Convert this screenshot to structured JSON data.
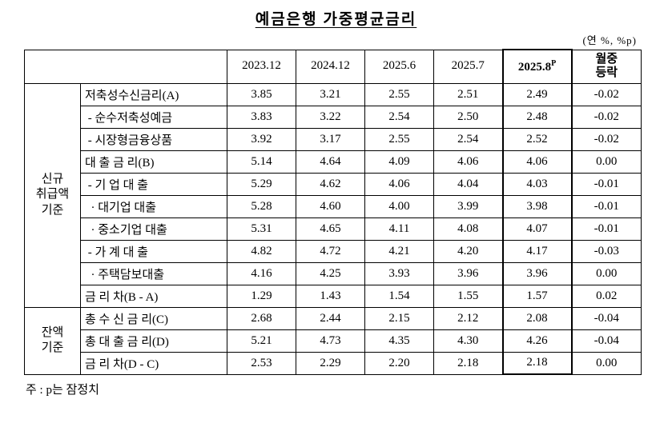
{
  "title": "예금은행 가중평균금리",
  "unit_note": "(연 %, %p)",
  "footnote": "주 : p는 잠정치",
  "table": {
    "highlight_col_index": 4,
    "col_headers": [
      {
        "label": "2023.12"
      },
      {
        "label": "2024.12"
      },
      {
        "label": "2025.6"
      },
      {
        "label": "2025.7"
      },
      {
        "label": "2025.8",
        "sup": "P",
        "bold": true
      },
      {
        "label": "월중\n등락",
        "bold": true
      }
    ],
    "groups": [
      {
        "label": "신규\n취급액\n기준",
        "rows": [
          {
            "label": "저축성수신금리(A)",
            "values": [
              "3.85",
              "3.21",
              "2.55",
              "2.51",
              "2.49",
              "-0.02"
            ]
          },
          {
            "label": " - 순수저축성예금",
            "values": [
              "3.83",
              "3.22",
              "2.54",
              "2.50",
              "2.48",
              "-0.02"
            ]
          },
          {
            "label": " - 시장형금융상품",
            "values": [
              "3.92",
              "3.17",
              "2.55",
              "2.54",
              "2.52",
              "-0.02"
            ]
          },
          {
            "label": "대 출 금 리(B)",
            "values": [
              "5.14",
              "4.64",
              "4.09",
              "4.06",
              "4.06",
              "0.00"
            ]
          },
          {
            "label": " - 기 업 대 출",
            "values": [
              "5.29",
              "4.62",
              "4.06",
              "4.04",
              "4.03",
              "-0.01"
            ]
          },
          {
            "label": "  · 대기업 대출",
            "values": [
              "5.28",
              "4.60",
              "4.00",
              "3.99",
              "3.98",
              "-0.01"
            ]
          },
          {
            "label": "  · 중소기업 대출",
            "values": [
              "5.31",
              "4.65",
              "4.11",
              "4.08",
              "4.07",
              "-0.01"
            ]
          },
          {
            "label": " - 가 계 대 출",
            "values": [
              "4.82",
              "4.72",
              "4.21",
              "4.20",
              "4.17",
              "-0.03"
            ]
          },
          {
            "label": "  · 주택담보대출",
            "values": [
              "4.16",
              "4.25",
              "3.93",
              "3.96",
              "3.96",
              "0.00"
            ]
          },
          {
            "label": "금 리 차(B - A)",
            "values": [
              "1.29",
              "1.43",
              "1.54",
              "1.55",
              "1.57",
              "0.02"
            ]
          }
        ]
      },
      {
        "label": "잔액\n기준",
        "rows": [
          {
            "label": "총 수 신 금 리(C)",
            "values": [
              "2.68",
              "2.44",
              "2.15",
              "2.12",
              "2.08",
              "-0.04"
            ]
          },
          {
            "label": "총 대 출 금 리(D)",
            "values": [
              "5.21",
              "4.73",
              "4.35",
              "4.30",
              "4.26",
              "-0.04"
            ]
          },
          {
            "label": "금 리 차(D - C)",
            "values": [
              "2.53",
              "2.29",
              "2.20",
              "2.18",
              "2.18",
              "0.00"
            ]
          }
        ]
      }
    ]
  }
}
